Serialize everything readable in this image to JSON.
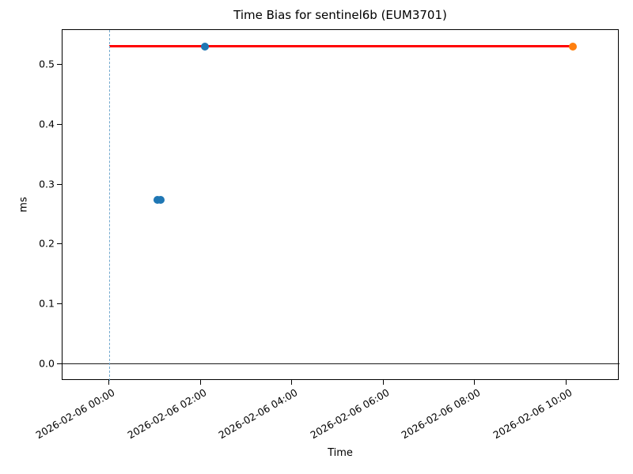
{
  "chart_data": {
    "type": "scatter",
    "title": "Time Bias for sentinel6b (EUM3701)",
    "xlabel": "Time",
    "ylabel": "ms",
    "x_unit": "minutes since 2026-02-06 00:00",
    "xlim": [
      -61.3,
      670.1
    ],
    "ylim": [
      -0.0284,
      0.5584
    ],
    "grid": false,
    "legend": "none",
    "x_ticks": [
      {
        "value": 0,
        "label": "2026-02-06 00:00"
      },
      {
        "value": 120,
        "label": "2026-02-06 02:00"
      },
      {
        "value": 240,
        "label": "2026-02-06 04:00"
      },
      {
        "value": 360,
        "label": "2026-02-06 06:00"
      },
      {
        "value": 480,
        "label": "2026-02-06 08:00"
      },
      {
        "value": 600,
        "label": "2026-02-06 10:00"
      }
    ],
    "y_ticks": [
      {
        "value": 0.0,
        "label": "0.0"
      },
      {
        "value": 0.1,
        "label": "0.1"
      },
      {
        "value": 0.2,
        "label": "0.2"
      },
      {
        "value": 0.3,
        "label": "0.3"
      },
      {
        "value": 0.4,
        "label": "0.4"
      },
      {
        "value": 0.5,
        "label": "0.5"
      }
    ],
    "series": [
      {
        "name": "time-bias-measurements",
        "color": "#1f77b4",
        "marker": "circle",
        "marker_size": 10,
        "points": [
          [
            63,
            0.274
          ],
          [
            68,
            0.274
          ],
          [
            126,
            0.531
          ]
        ]
      },
      {
        "name": "latest-time-bias",
        "color": "#ff7f0e",
        "marker": "circle",
        "marker_size": 10,
        "points": [
          [
            609,
            0.531
          ]
        ]
      }
    ],
    "lines": [
      {
        "name": "applied-bias-segment",
        "kind": "segment",
        "x1": 0,
        "x2": 609,
        "y": 0.531,
        "color": "#ff0000",
        "width": 3,
        "style": "solid"
      },
      {
        "name": "zero-reference-hline",
        "kind": "hline",
        "y": 0.0,
        "color": "#1a1a1a",
        "width": 1,
        "style": "solid"
      },
      {
        "name": "start-time-vline",
        "kind": "vline",
        "x": 0,
        "color": "#74aacf",
        "width": 1,
        "style": "dashed"
      }
    ]
  }
}
